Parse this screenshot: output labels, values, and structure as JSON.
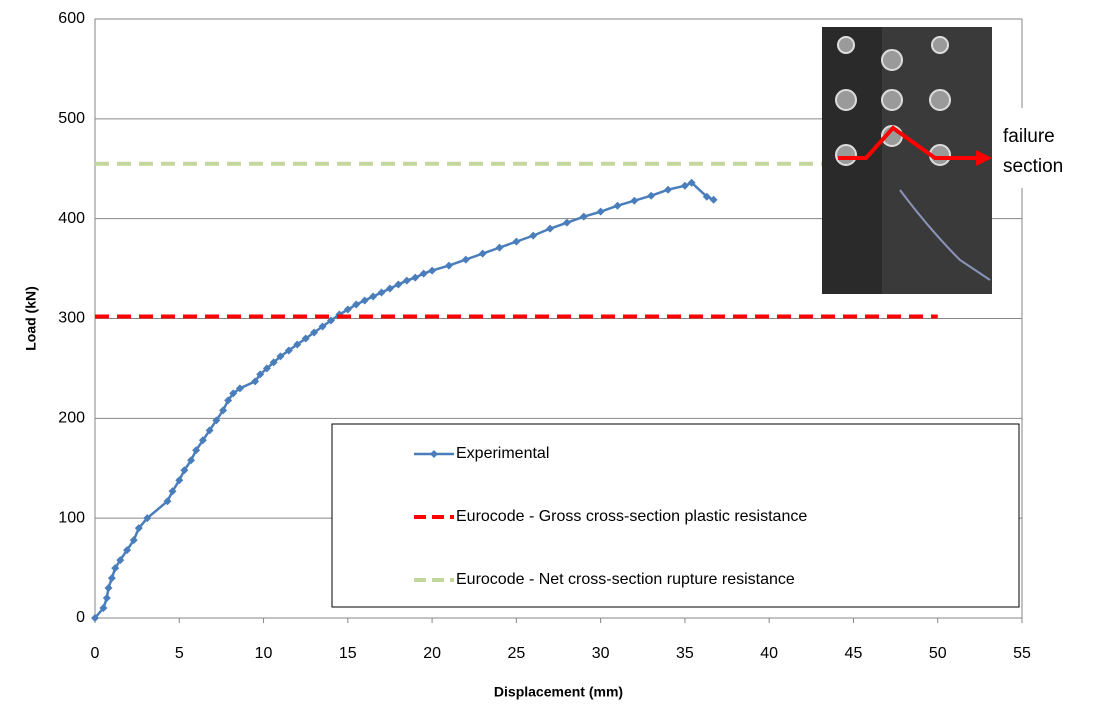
{
  "chart_data": {
    "type": "line",
    "xlabel": "Displacement (mm)",
    "ylabel": "Load (kN)",
    "xlim": [
      0,
      55
    ],
    "xticks": [
      0,
      5,
      10,
      15,
      20,
      25,
      30,
      35,
      40,
      45,
      50,
      55
    ],
    "ylim": [
      0,
      600
    ],
    "yticks": [
      0,
      100,
      200,
      300,
      400,
      500,
      600
    ],
    "grid": true,
    "legend": "bottom-right",
    "annotation": "failure section",
    "series": [
      {
        "name": "Experimental",
        "color": "#4a7ebb",
        "style": "solid-marker",
        "x": [
          0,
          0.5,
          0.7,
          0.8,
          1.0,
          1.2,
          1.5,
          1.9,
          2.3,
          2.6,
          3.1,
          4.3,
          4.6,
          5.0,
          5.3,
          5.7,
          6.0,
          6.4,
          6.8,
          7.2,
          7.6,
          7.9,
          8.2,
          8.6,
          9.5,
          9.8,
          10.2,
          10.6,
          11.0,
          11.5,
          12.0,
          12.5,
          13.0,
          13.5,
          14.0,
          14.5,
          15.0,
          15.5,
          16.0,
          16.5,
          17.0,
          17.5,
          18.0,
          18.5,
          19.0,
          19.5,
          20.0,
          21,
          22,
          23,
          24,
          25,
          26,
          27,
          28,
          29,
          30,
          31,
          32,
          33,
          34,
          35,
          35.4,
          36.3,
          36.7
        ],
        "values": [
          0,
          10,
          20,
          30,
          40,
          50,
          58,
          68,
          78,
          90,
          100,
          117,
          127,
          138,
          148,
          158,
          168,
          178,
          188,
          198,
          208,
          218,
          225,
          230,
          237,
          244,
          250,
          256,
          262,
          268,
          274,
          280,
          286,
          292,
          298,
          304,
          309,
          314,
          318,
          322,
          326,
          330,
          334,
          338,
          341,
          345,
          348,
          353,
          359,
          365,
          371,
          377,
          383,
          390,
          396,
          402,
          407,
          413,
          418,
          423,
          429,
          433,
          436,
          422,
          419
        ]
      },
      {
        "name": "Eurocode - Gross cross-section plastic resistance",
        "color": "#ff0000",
        "style": "dashed",
        "x": [
          0,
          50
        ],
        "values": [
          302,
          302
        ]
      },
      {
        "name": "Eurocode - Net cross-section rupture resistance",
        "color": "#c3d69b",
        "style": "dashed",
        "x": [
          0,
          50
        ],
        "values": [
          455,
          455
        ]
      }
    ]
  }
}
